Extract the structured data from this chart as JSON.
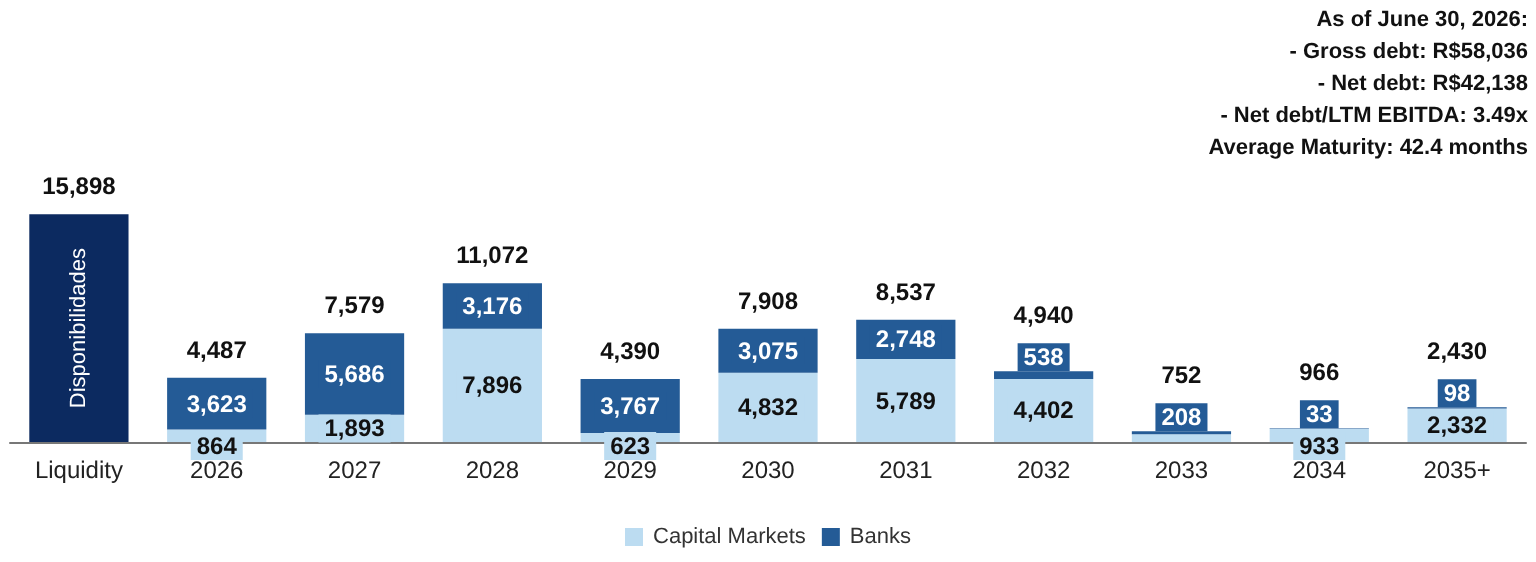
{
  "chart_data": {
    "type": "bar",
    "stacked": true,
    "categories": [
      "Liquidity",
      "2026",
      "2027",
      "2028",
      "2029",
      "2030",
      "2031",
      "2032",
      "2033",
      "2034",
      "2035+"
    ],
    "series": [
      {
        "name": "Disponibilidades",
        "color": "#0c2a60",
        "values": [
          15898,
          null,
          null,
          null,
          null,
          null,
          null,
          null,
          null,
          null,
          null
        ],
        "value_labels": [
          null,
          null,
          null,
          null,
          null,
          null,
          null,
          null,
          null,
          null,
          null
        ]
      },
      {
        "name": "Capital Markets",
        "color": "#bcdcf1",
        "values": [
          null,
          864,
          1893,
          7896,
          623,
          4832,
          5789,
          4402,
          544,
          933,
          2332
        ],
        "value_labels": [
          null,
          "864",
          "1,893",
          "7,896",
          "623",
          "4,832",
          "5,789",
          "4,402",
          null,
          "933",
          "2,332"
        ]
      },
      {
        "name": "Banks",
        "color": "#245b96",
        "values": [
          null,
          3623,
          5686,
          3176,
          3767,
          3075,
          2748,
          538,
          208,
          33,
          98
        ],
        "value_labels": [
          null,
          "3,623",
          "5,686",
          "3,176",
          "3,767",
          "3,075",
          "2,748",
          "538",
          "208",
          "33",
          "98"
        ]
      }
    ],
    "totals": [
      "15,898",
      "4,487",
      "7,579",
      "11,072",
      "4,390",
      "7,908",
      "8,537",
      "4,940",
      "752",
      "966",
      "2,430"
    ],
    "annotations": [
      "As of June 30, 2026:",
      "- Gross debt: R$58,036",
      "- Net debt: R$42,138",
      "- Net debt/LTM EBITDA: 3.49x",
      "Average Maturity: 42.4 months"
    ],
    "legend": "bottom"
  }
}
